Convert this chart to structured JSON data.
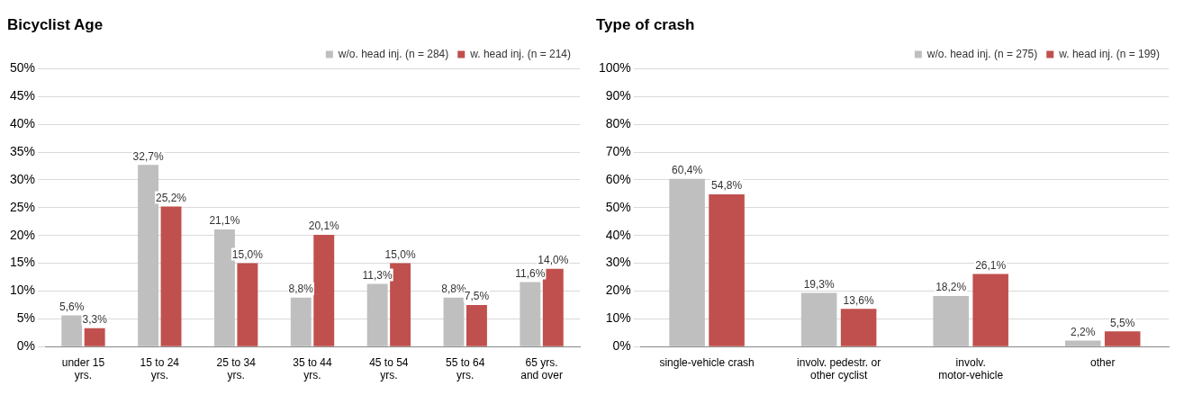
{
  "chart_data": [
    {
      "type": "bar",
      "title": "Bicyclist Age",
      "categories": [
        "under 15 yrs.",
        "15 to 24 yrs.",
        "25 to 34 yrs.",
        "35 to 44 yrs.",
        "45 to 54 yrs.",
        "55 to 64 yrs.",
        "65 yrs. and over"
      ],
      "series": [
        {
          "name": "w/o. head inj. (n = 284)",
          "color": "#bfbfbf",
          "values": [
            5.6,
            32.7,
            21.1,
            8.8,
            11.3,
            8.8,
            11.6
          ],
          "value_labels": [
            "5,6%",
            "32,7%",
            "21,1%",
            "8,8%",
            "11,3%",
            "8,8%",
            "11,6%"
          ]
        },
        {
          "name": "w. head inj. (n = 214)",
          "color": "#c0504d",
          "values": [
            3.3,
            25.2,
            15.0,
            20.1,
            15.0,
            7.5,
            14.0
          ],
          "value_labels": [
            "3,3%",
            "25,2%",
            "15,0%",
            "20,1%",
            "15,0%",
            "7,5%",
            "14,0%"
          ]
        }
      ],
      "ylim": [
        0,
        50
      ],
      "yticks": [
        {
          "value": 0,
          "label": "0%"
        },
        {
          "value": 5,
          "label": "5%"
        },
        {
          "value": 10,
          "label": "10%"
        },
        {
          "value": 15,
          "label": "15%"
        },
        {
          "value": 20,
          "label": "20%"
        },
        {
          "value": 25,
          "label": "25%"
        },
        {
          "value": 30,
          "label": "30%"
        },
        {
          "value": 35,
          "label": "35%"
        },
        {
          "value": 40,
          "label": "40%"
        },
        {
          "value": 45,
          "label": "45%"
        },
        {
          "value": 50,
          "label": "50%"
        }
      ],
      "grid": "y",
      "legend": "top right"
    },
    {
      "type": "bar",
      "title": "Type of crash",
      "categories": [
        "single-vehicle crash",
        "involv. pedestr. or other cyclist",
        "involv. motor-vehicle",
        "other"
      ],
      "series": [
        {
          "name": "w/o. head inj. (n = 275)",
          "color": "#bfbfbf",
          "values": [
            60.4,
            19.3,
            18.2,
            2.2
          ],
          "value_labels": [
            "60,4%",
            "19,3%",
            "18,2%",
            "2,2%"
          ]
        },
        {
          "name": "w. head inj. (n = 199)",
          "color": "#c0504d",
          "values": [
            54.8,
            13.6,
            26.1,
            5.5
          ],
          "value_labels": [
            "54,8%",
            "13,6%",
            "26,1%",
            "5,5%"
          ]
        }
      ],
      "ylim": [
        0,
        100
      ],
      "yticks": [
        {
          "value": 0,
          "label": "0%"
        },
        {
          "value": 10,
          "label": "10%"
        },
        {
          "value": 20,
          "label": "20%"
        },
        {
          "value": 30,
          "label": "30%"
        },
        {
          "value": 40,
          "label": "40%"
        },
        {
          "value": 50,
          "label": "50%"
        },
        {
          "value": 60,
          "label": "60%"
        },
        {
          "value": 70,
          "label": "70%"
        },
        {
          "value": 80,
          "label": "80%"
        },
        {
          "value": 90,
          "label": "90%"
        },
        {
          "value": 100,
          "label": "100%"
        }
      ],
      "grid": "y",
      "legend": "top right"
    }
  ]
}
